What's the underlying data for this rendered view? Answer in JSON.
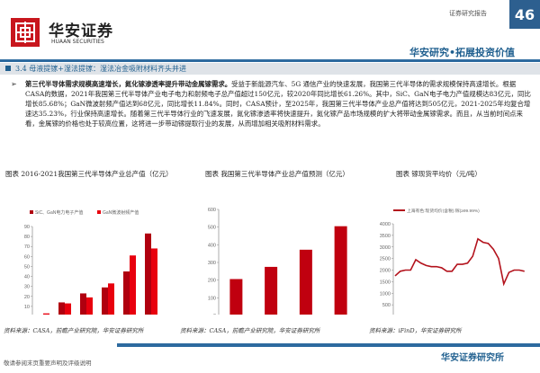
{
  "header": {
    "brand_cn": "华安证券",
    "brand_en": "HUAAN SECURITIES",
    "report_type": "证券研究报告",
    "page_number": "46",
    "slogan": "华安研究•拓展投资价值"
  },
  "section": {
    "title": "3.4 母液提镓+湿法提镓：湿法冶金吸附材料齐头并进"
  },
  "body": {
    "bullet": "➢",
    "lead": "第三代半导体需求规模高速增长，氮化镓渗透率提升带动金属镓需求。",
    "text": "受益于新能源汽车、5G 通信产业的快速发展，我国第三代半导体的需求规模保持高速增长。根据CASA的数据，2021年我国第三代半导体产业电子电力和射频电子总产值超过150亿元，较2020年同比增长61.26%。其中，SiC、GaN电子电力产值规模达83亿元，同比增长85.68%；GaN微波射频产值达到68亿元，同比增长11.84%。同时，CASA预计，至2025年，我国第三代半导体产业总产值将达到505亿元，2021-2025年均复合增速达35.23%，行业保持高速增长。随着第三代半导体行业的飞速发展，氮化镓渗透率将快速提升，氮化镓产品市场规模的扩大将带动金属镓需求。而且，从当前时间点来看，金属镓的价格也处于较高位置，这将进一步带动镓提取行业的发展，从而增加相关吸附材料需求。"
  },
  "chart_data": [
    {
      "type": "bar",
      "title": "图表 2016-2021我国第三代半导体产业总产值（亿元）",
      "categories": [
        "2016",
        "2017",
        "2018",
        "2019",
        "2020",
        "2021"
      ],
      "series": [
        {
          "name": "SiC、GaN电力电子产值",
          "color": "#b0000f",
          "values": [
            1,
            14,
            23,
            29,
            45,
            83
          ]
        },
        {
          "name": "GaN微波射频产值",
          "color": "#e8000e",
          "values": [
            3,
            13,
            19,
            33,
            61,
            68
          ]
        }
      ],
      "ylim": [
        0,
        90
      ],
      "yticks": [
        0,
        10,
        20,
        30,
        40,
        50,
        60,
        70,
        80,
        90
      ],
      "legend": "top",
      "source": "资料来源：CASA，前瞻产业研究院，华安证券研究所"
    },
    {
      "type": "bar",
      "title": "图表 我国第三代半导体产业总产值预测（亿元）",
      "categories": [
        "2022E",
        "2023E",
        "2024E",
        "2025E"
      ],
      "values": [
        206,
        275,
        372,
        505
      ],
      "color": "#c0000f",
      "ylim": [
        0,
        600
      ],
      "yticks": [
        0,
        100,
        200,
        300,
        400,
        500,
        600
      ],
      "source": "资料来源：CASA，前瞻产业研究院，华安证券研究所"
    },
    {
      "type": "line",
      "title": "图表 镓现货平均价（元/吨）",
      "series": [
        {
          "name": "上海有色:现货均价(含税):镓(≥99.99%)",
          "color": "#b3121c",
          "x": [
            "2021-01",
            "2021-02",
            "2021-03",
            "2021-04",
            "2021-05",
            "2021-06",
            "2021-07",
            "2021-08",
            "2021-09",
            "2021-10",
            "2021-11",
            "2021-12",
            "2022-01",
            "2022-02",
            "2022-03",
            "2022-04",
            "2022-05",
            "2022-06",
            "2022-07",
            "2022-08",
            "2022-09",
            "2022-10",
            "2022-11",
            "2022-12",
            "2023-01",
            "2023-02"
          ],
          "values": [
            1750,
            1950,
            2000,
            2000,
            2450,
            2300,
            2200,
            2150,
            2150,
            2100,
            1950,
            1950,
            2250,
            2250,
            2300,
            2600,
            3350,
            3200,
            3150,
            2900,
            2500,
            1400,
            1900,
            2000,
            2000,
            1950
          ]
        }
      ],
      "xticks": [
        "2021-01-06",
        "2022-01-06",
        "2023-01-06"
      ],
      "ylim": [
        0,
        4000
      ],
      "yticks": [
        0,
        500,
        1000,
        1500,
        2000,
        2500,
        3000,
        3500,
        4000
      ],
      "legend": "top",
      "source": "资料来源：iFinD，华安证券研究所"
    }
  ],
  "footer": {
    "disclaimer": "敬请参阅末页重要声明及评级说明",
    "institute": "华安证券研究所"
  }
}
